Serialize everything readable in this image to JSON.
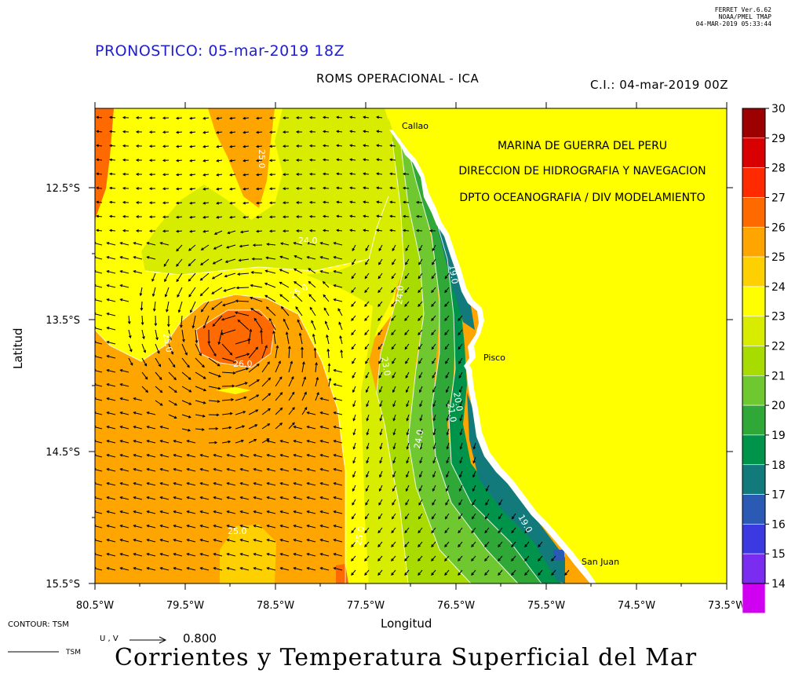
{
  "header": {
    "ferret_line1": "FERRET  Ver.6.62",
    "ferret_line2": "NOAA/PMEL TMAP",
    "ferret_line3": "04-MAR-2019 05:33:44",
    "forecast_title": "PRONOSTICO: 05-mar-2019 18Z",
    "subtitle": "ROMS OPERACIONAL - ICA",
    "initial_condition": "C.I.: 04-mar-2019 00Z"
  },
  "map": {
    "info_lines": [
      "MARINA DE GUERRA DEL PERU",
      "DIRECCION DE HIDROGRAFIA Y NAVEGACION",
      "DPTO OCEANOGRAFIA / DIV MODELAMIENTO"
    ],
    "places": [
      "Callao",
      "Pisco",
      "San Juan"
    ],
    "contour_labels": [
      "25.0",
      "24.0",
      "25.0",
      "25.0",
      "26.0",
      "24.0",
      "23.0",
      "19.0",
      "20.0",
      "21.0",
      "24.0",
      "19.0",
      "25.0",
      "25.0"
    ],
    "xlim": [
      -80.5,
      -73.5
    ],
    "ylim": [
      -15.5,
      -12.0
    ]
  },
  "axes": {
    "x_label": "Longitud",
    "y_label": "Latitud",
    "x_ticks": [
      "80.5°W",
      "79.5°W",
      "78.5°W",
      "77.5°W",
      "76.5°W",
      "75.5°W",
      "74.5°W",
      "73.5°W"
    ],
    "y_ticks": [
      "12.5°S",
      "13.5°S",
      "14.5°S",
      "15.5°S"
    ]
  },
  "colorbar": {
    "ticks": [
      "30",
      "29",
      "28",
      "27",
      "26",
      "25",
      "24",
      "23",
      "22",
      "21",
      "20",
      "19",
      "18",
      "17",
      "16",
      "15",
      "14"
    ],
    "colors": [
      "#9c0000",
      "#d80000",
      "#ff2a00",
      "#ff6a00",
      "#ffa500",
      "#ffd000",
      "#ffff00",
      "#d8ec00",
      "#a8dc00",
      "#70c830",
      "#30a838",
      "#00944a",
      "#127a7a",
      "#2a5ab4",
      "#3a3ae0",
      "#7a2cf0",
      "#d000f0"
    ]
  },
  "footer": {
    "contour_label": "CONTOUR: TSM",
    "vector_label": "U , V",
    "vector_scale": "0.800",
    "line_label": "TSM",
    "main_title": "Corrientes y Temperatura Superficial del Mar"
  }
}
